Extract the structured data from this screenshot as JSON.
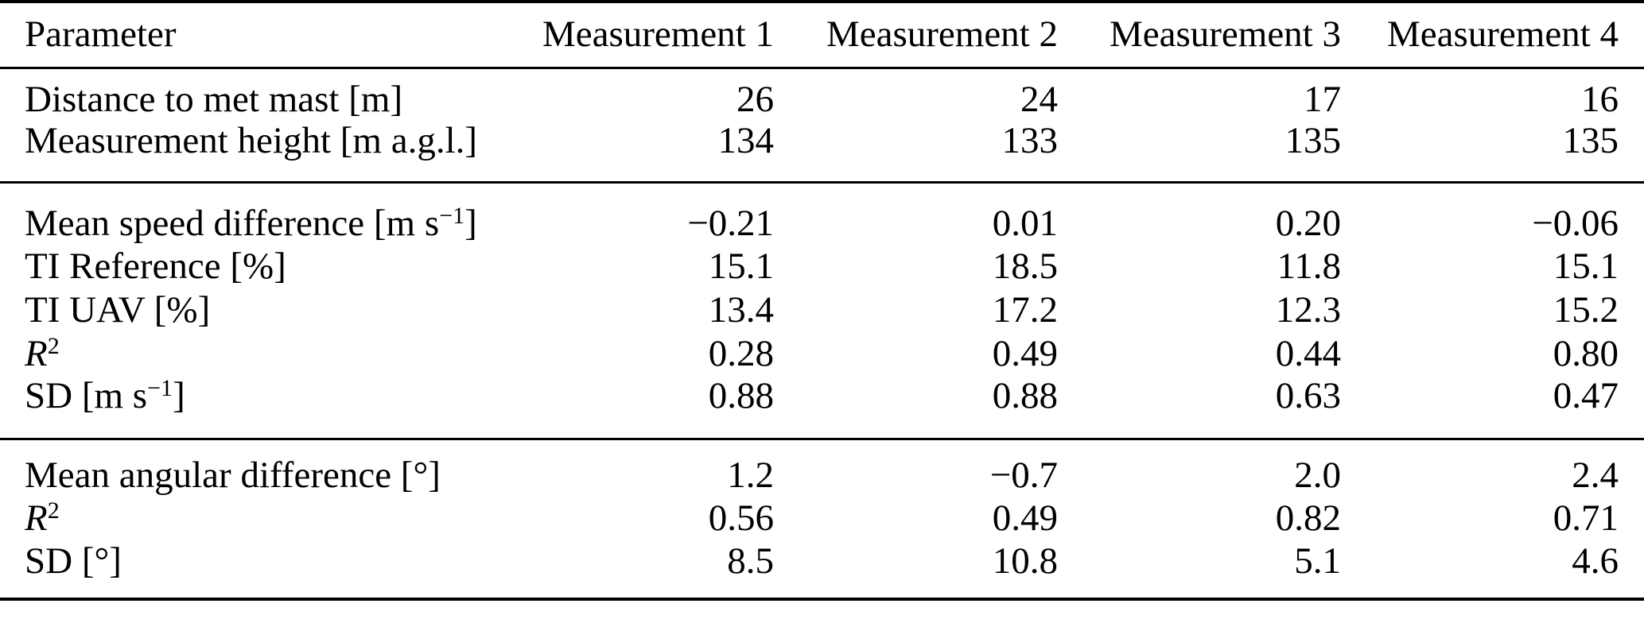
{
  "page": {
    "background_color": "#ffffff",
    "text_color": "#000000"
  },
  "table": {
    "header": {
      "param_label": "Parameter",
      "measurement_labels": [
        "Measurement 1",
        "Measurement 2",
        "Measurement 3",
        "Measurement 4"
      ]
    },
    "sections": [
      {
        "rows": [
          {
            "label": [
              {
                "t": "Distance to met mast [m]"
              }
            ],
            "values": [
              "26",
              "24",
              "17",
              "16"
            ]
          },
          {
            "label": [
              {
                "t": "Measurement height [m a.g.l.]"
              }
            ],
            "values": [
              "134",
              "133",
              "135",
              "135"
            ]
          }
        ]
      },
      {
        "rows": [
          {
            "label": [
              {
                "t": "Mean speed difference [m s"
              },
              {
                "t": "−1",
                "style": "sup"
              },
              {
                "t": "]"
              }
            ],
            "values": [
              "−0.21",
              "0.01",
              "0.20",
              "−0.06"
            ]
          },
          {
            "label": [
              {
                "t": "TI Reference [%]"
              }
            ],
            "values": [
              "15.1",
              "18.5",
              "11.8",
              "15.1"
            ]
          },
          {
            "label": [
              {
                "t": "TI UAV [%]"
              }
            ],
            "values": [
              "13.4",
              "17.2",
              "12.3",
              "15.2"
            ]
          },
          {
            "label": [
              {
                "t": "R",
                "style": "italic"
              },
              {
                "t": "2",
                "style": "sup"
              }
            ],
            "values": [
              "0.28",
              "0.49",
              "0.44",
              "0.80"
            ]
          },
          {
            "label": [
              {
                "t": "SD [m s"
              },
              {
                "t": "−1",
                "style": "sup"
              },
              {
                "t": "]"
              }
            ],
            "values": [
              "0.88",
              "0.88",
              "0.63",
              "0.47"
            ]
          }
        ]
      },
      {
        "rows": [
          {
            "label": [
              {
                "t": "Mean angular difference [°]"
              }
            ],
            "values": [
              "1.2",
              "−0.7",
              "2.0",
              "2.4"
            ]
          },
          {
            "label": [
              {
                "t": "R",
                "style": "italic"
              },
              {
                "t": "2",
                "style": "sup"
              }
            ],
            "values": [
              "0.56",
              "0.49",
              "0.82",
              "0.71"
            ]
          },
          {
            "label": [
              {
                "t": "SD [°]"
              }
            ],
            "values": [
              "8.5",
              "10.8",
              "5.1",
              "4.6"
            ]
          }
        ]
      }
    ]
  }
}
